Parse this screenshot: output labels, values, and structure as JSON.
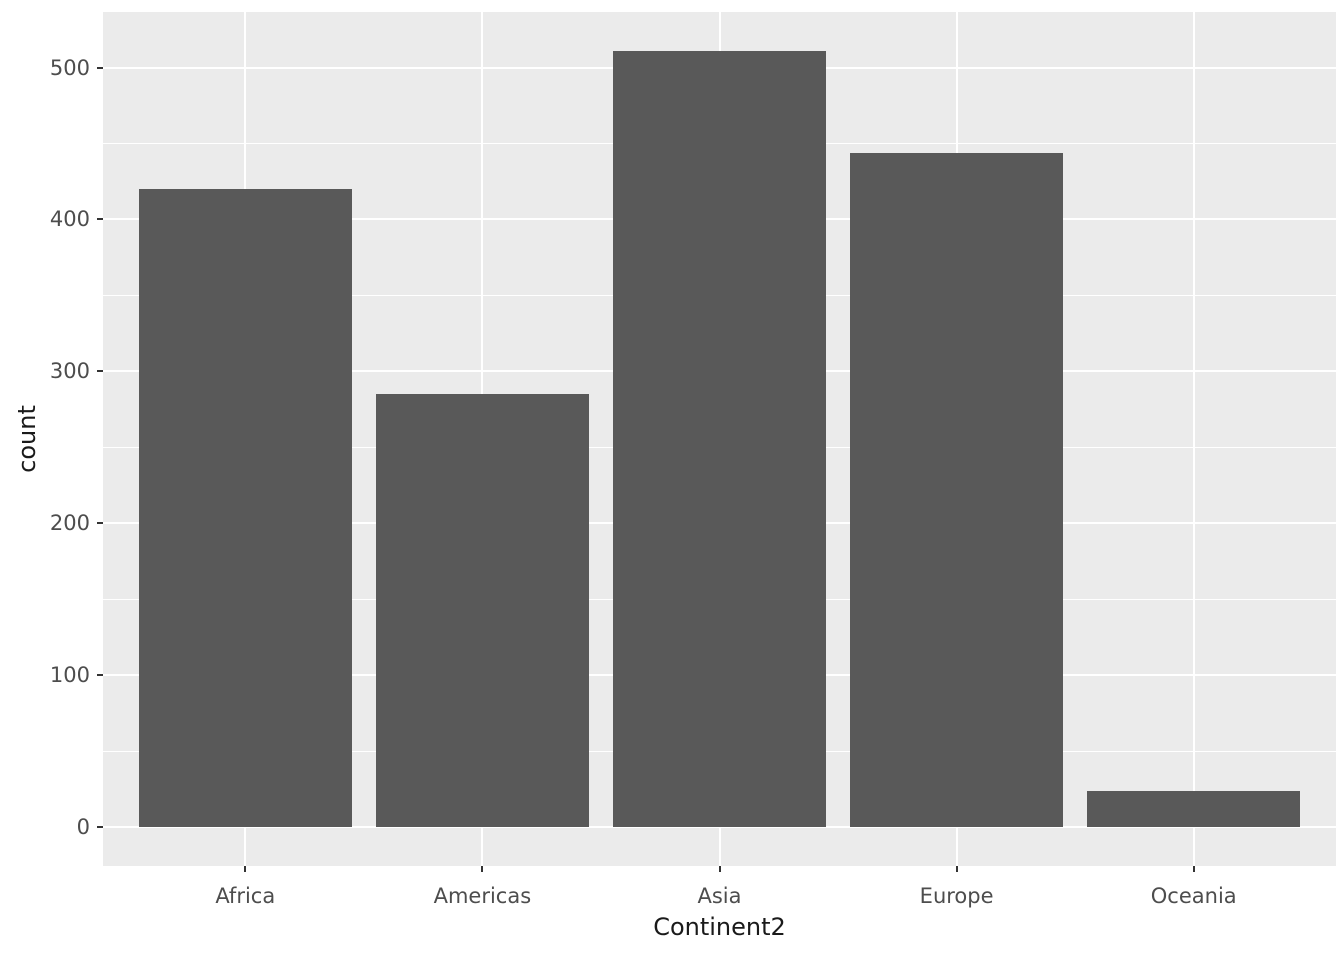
{
  "chart_data": {
    "type": "bar",
    "title": "",
    "xlabel": "Continent2",
    "ylabel": "count",
    "categories": [
      "Africa",
      "Americas",
      "Asia",
      "Europe",
      "Oceania"
    ],
    "values": [
      420,
      285,
      511,
      444,
      24
    ],
    "yticks": [
      0,
      100,
      200,
      300,
      400,
      500
    ],
    "ytick_labels": [
      "0",
      "100",
      "200",
      "300",
      "400",
      "500"
    ],
    "minor_yticks": [
      50,
      150,
      250,
      350,
      450
    ],
    "ylim": [
      -25.6,
      536.6
    ],
    "grid": "on",
    "legend": "none",
    "bar_width_fraction": 0.9,
    "colors": {
      "bar_fill": "#595959",
      "panel_background": "#EBEBEB",
      "grid_line": "#FFFFFF",
      "axis_text": "#4D4D4D",
      "axis_title": "#1A1A1A",
      "tick_mark": "#333333",
      "figure_background": "#FFFFFF"
    }
  }
}
